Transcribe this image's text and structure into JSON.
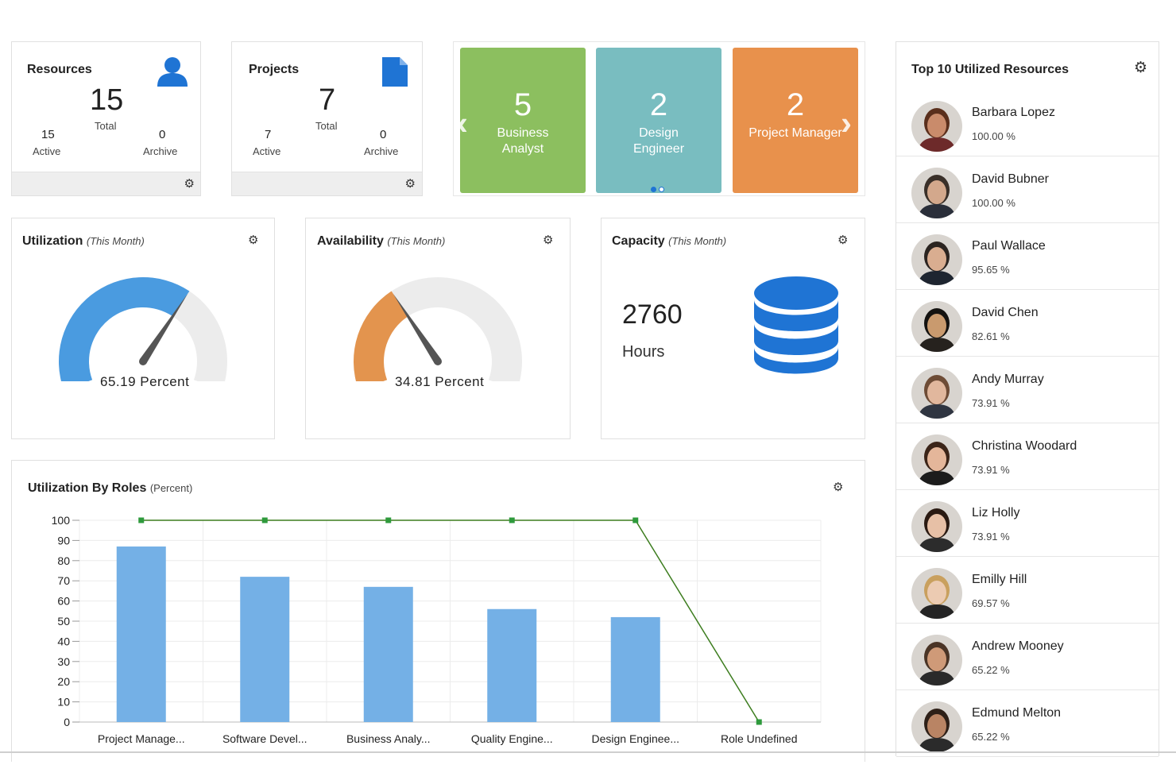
{
  "resources": {
    "title": "Resources",
    "total": "15",
    "total_label": "Total",
    "active": "15",
    "active_label": "Active",
    "archive": "0",
    "archive_label": "Archive"
  },
  "projects": {
    "title": "Projects",
    "total": "7",
    "total_label": "Total",
    "active": "7",
    "active_label": "Active",
    "archive": "0",
    "archive_label": "Archive"
  },
  "role_tiles": [
    {
      "count": "5",
      "label": "Business Analyst",
      "color": "#8cbf5f"
    },
    {
      "count": "2",
      "label": "Design Engineer",
      "color": "#79bdc0"
    },
    {
      "count": "2",
      "label": "Project Manager",
      "color": "#e8914c"
    }
  ],
  "utilization": {
    "title": "Utilization",
    "period": "(This Month)",
    "value": "65.19 Percent",
    "fraction": 0.6519,
    "color": "#4a9be0"
  },
  "availability": {
    "title": "Availability",
    "period": "(This Month)",
    "value": "34.81 Percent",
    "fraction": 0.3481,
    "color": "#e3944e"
  },
  "capacity": {
    "title": "Capacity",
    "period": "(This Month)",
    "value": "2760",
    "unit": "Hours",
    "icon": "database-icon",
    "color": "#1f74d4"
  },
  "roles_chart": {
    "title": "Utilization By Roles",
    "unit": "(Percent)"
  },
  "chart_data": {
    "type": "bar",
    "title": "Utilization By Roles (Percent)",
    "categories": [
      "Project Manage...",
      "Software Devel...",
      "Business Analy...",
      "Quality Engine...",
      "Design Enginee...",
      "Role Undefined"
    ],
    "series": [
      {
        "type": "bar",
        "values": [
          87,
          72,
          67,
          56,
          52,
          0
        ],
        "color": "#74b0e6"
      },
      {
        "type": "line",
        "values": [
          100,
          100,
          100,
          100,
          100,
          0
        ],
        "color": "#3d7d1f"
      }
    ],
    "ylim": [
      0,
      100
    ],
    "yticks": [
      "100",
      "90",
      "80",
      "70",
      "60",
      "50",
      "40",
      "30",
      "20",
      "10",
      "0"
    ],
    "grid": true
  },
  "top10": {
    "title": "Top 10 Utilized Resources",
    "people": [
      {
        "name": "Barbara Lopez",
        "pct": "100.00 %",
        "skin": "#c98b6b",
        "hair": "#5a2f1c",
        "shirt": "#6d2a2a"
      },
      {
        "name": "David Bubner",
        "pct": "100.00 %",
        "skin": "#d3a88c",
        "hair": "#3a3029",
        "shirt": "#2a2f3a"
      },
      {
        "name": "Paul Wallace",
        "pct": "95.65 %",
        "skin": "#d9ad90",
        "hair": "#2b2420",
        "shirt": "#1e2530"
      },
      {
        "name": "David Chen",
        "pct": "82.61 %",
        "skin": "#c99a6e",
        "hair": "#141210",
        "shirt": "#26221e"
      },
      {
        "name": "Andy Murray",
        "pct": "73.91 %",
        "skin": "#e1b79d",
        "hair": "#6e4c36",
        "shirt": "#2f3541"
      },
      {
        "name": "Christina Woodard",
        "pct": "73.91 %",
        "skin": "#e4b69a",
        "hair": "#3b2418",
        "shirt": "#1c1c1c"
      },
      {
        "name": "Liz Holly",
        "pct": "73.91 %",
        "skin": "#e7c0a6",
        "hair": "#2a1a12",
        "shirt": "#2c2c2c"
      },
      {
        "name": "Emilly Hill",
        "pct": "69.57 %",
        "skin": "#eccbb2",
        "hair": "#c9a05e",
        "shirt": "#242424"
      },
      {
        "name": "Andrew Mooney",
        "pct": "65.22 %",
        "skin": "#cf9a78",
        "hair": "#4a3426",
        "shirt": "#2a2a2a"
      },
      {
        "name": "Edmund Melton",
        "pct": "65.22 %",
        "skin": "#b98464",
        "hair": "#2e2018",
        "shirt": "#2b2b2b"
      }
    ]
  },
  "icons": {
    "settings": "gear-icon",
    "resources": "person-icon",
    "projects": "document-icon",
    "prev": "chevron-left-icon",
    "next": "chevron-right-icon"
  }
}
